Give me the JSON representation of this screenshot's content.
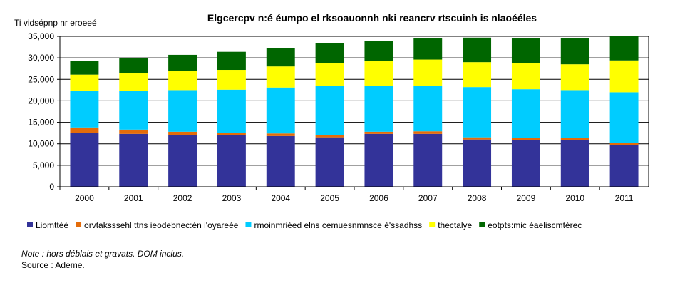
{
  "chart_data": {
    "type": "bar",
    "stacked": true,
    "title": "Elgcercpv n:é éumpo el rksoauonnh nki reancrv rtscuinh is nlaoééles",
    "ylabel": "Ti vidsépnp nr eroeeé",
    "xlabel": "",
    "ylim": [
      0,
      35000
    ],
    "yticks": [
      "0",
      "5,000",
      "10,000",
      "15,000",
      "20,000",
      "25,000",
      "30,000",
      "35,000"
    ],
    "grid": true,
    "legend_position": "bottom",
    "categories": [
      "2000",
      "2001",
      "2002",
      "2003",
      "2004",
      "2005",
      "2006",
      "2007",
      "2008",
      "2009",
      "2010",
      "2011"
    ],
    "series": [
      {
        "name": "Liomttéé",
        "color": "#333399",
        "values": [
          12600,
          12300,
          12100,
          12000,
          11800,
          11500,
          12300,
          12300,
          11000,
          10800,
          10800,
          9700
        ]
      },
      {
        "name": "orvtaksssehl ttns ieodebnec:én i'oyareée",
        "color": "#e46c0a",
        "values": [
          1200,
          1000,
          700,
          600,
          600,
          600,
          500,
          600,
          500,
          500,
          500,
          500
        ]
      },
      {
        "name": "rmoinmriéed elns cemuesnmnsce é'ssadhss",
        "color": "#00ccff",
        "values": [
          8600,
          9000,
          9700,
          10000,
          10700,
          11400,
          10700,
          10600,
          11700,
          11400,
          11200,
          11800
        ]
      },
      {
        "name": "thectalye",
        "color": "#ffff00",
        "values": [
          3700,
          4200,
          4400,
          4600,
          4900,
          5300,
          5700,
          6100,
          5800,
          6000,
          6000,
          7400
        ]
      },
      {
        "name": "eotpts:mic éaeliscmtérec",
        "color": "#006600",
        "values": [
          3200,
          3500,
          3800,
          4200,
          4300,
          4600,
          4700,
          4900,
          5700,
          5800,
          6000,
          5600
        ]
      }
    ]
  },
  "notes": {
    "note": "Note : hors déblais et gravats. DOM inclus.",
    "source": "Source : Ademe."
  }
}
